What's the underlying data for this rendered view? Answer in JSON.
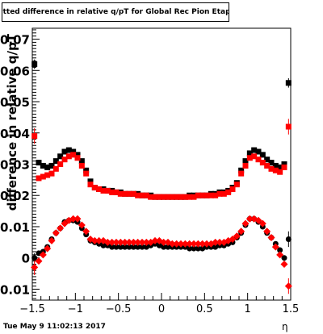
{
  "title": "Fitted difference in relative q/pT  for Global Rec Pion EtapT",
  "timestamp": "Tue May  9 11:02:13 2017",
  "chart_data": {
    "type": "scatter",
    "title": "Fitted difference in relative q/pT  for Global Rec Pion EtapT",
    "xlabel": "η",
    "ylabel": "difference in relative q/pT",
    "xlim": [
      -1.5,
      1.5
    ],
    "ylim": [
      -0.0135,
      0.0735
    ],
    "xticks": [
      -1.5,
      -1,
      -0.5,
      0,
      0.5,
      1,
      1.5
    ],
    "xtick_labels": [
      "−1.5",
      "−1",
      "−0.5",
      "0",
      "0.5",
      "1",
      "1.5"
    ],
    "yticks": [
      -0.01,
      0,
      0.01,
      0.02,
      0.03,
      0.04,
      0.05,
      0.06,
      0.07
    ],
    "ytick_labels": [
      "−0.01",
      "0",
      "0.01",
      "0.02",
      "0.03",
      "0.04",
      "0.05",
      "0.06",
      "0.07"
    ],
    "grid": false,
    "legend": false,
    "x": [
      -1.475,
      -1.425,
      -1.375,
      -1.325,
      -1.275,
      -1.225,
      -1.175,
      -1.125,
      -1.075,
      -1.025,
      -0.975,
      -0.925,
      -0.875,
      -0.825,
      -0.775,
      -0.725,
      -0.675,
      -0.625,
      -0.575,
      -0.525,
      -0.475,
      -0.425,
      -0.375,
      -0.325,
      -0.275,
      -0.225,
      -0.175,
      -0.125,
      -0.075,
      -0.025,
      0.025,
      0.075,
      0.125,
      0.175,
      0.225,
      0.275,
      0.325,
      0.375,
      0.425,
      0.475,
      0.525,
      0.575,
      0.625,
      0.675,
      0.725,
      0.775,
      0.825,
      0.875,
      0.925,
      0.975,
      1.025,
      1.075,
      1.125,
      1.175,
      1.225,
      1.275,
      1.325,
      1.375,
      1.425,
      1.475
    ],
    "series": [
      {
        "color": "#000000",
        "marker": "square",
        "values": [
          0.062,
          0.0305,
          0.0295,
          0.029,
          0.0295,
          0.031,
          0.0325,
          0.034,
          0.0345,
          0.034,
          0.033,
          0.031,
          0.028,
          0.0245,
          0.0225,
          0.022,
          0.022,
          0.0215,
          0.0215,
          0.021,
          0.021,
          0.0205,
          0.0205,
          0.0205,
          0.0205,
          0.02,
          0.02,
          0.02,
          0.0195,
          0.0195,
          0.0195,
          0.0195,
          0.0195,
          0.0195,
          0.0195,
          0.0195,
          0.02,
          0.02,
          0.02,
          0.02,
          0.02,
          0.0205,
          0.0205,
          0.021,
          0.021,
          0.0215,
          0.0225,
          0.024,
          0.028,
          0.031,
          0.0335,
          0.0345,
          0.034,
          0.033,
          0.0315,
          0.0305,
          0.0295,
          0.029,
          0.03,
          0.056
        ]
      },
      {
        "color": "#ff0000",
        "marker": "square",
        "values": [
          0.039,
          0.0255,
          0.026,
          0.0265,
          0.027,
          0.0285,
          0.03,
          0.0315,
          0.0325,
          0.033,
          0.032,
          0.0295,
          0.027,
          0.0235,
          0.0225,
          0.022,
          0.0215,
          0.0215,
          0.021,
          0.021,
          0.0205,
          0.0205,
          0.0205,
          0.0205,
          0.02,
          0.02,
          0.02,
          0.0195,
          0.0195,
          0.0195,
          0.0195,
          0.0195,
          0.0195,
          0.0195,
          0.0195,
          0.0195,
          0.0195,
          0.0195,
          0.02,
          0.02,
          0.02,
          0.02,
          0.02,
          0.0205,
          0.0205,
          0.021,
          0.022,
          0.0235,
          0.027,
          0.0295,
          0.032,
          0.0325,
          0.0315,
          0.0305,
          0.0295,
          0.0285,
          0.028,
          0.0275,
          0.029,
          0.042
        ]
      },
      {
        "color": "#000000",
        "marker": "circle",
        "values": [
          0.0,
          0.0015,
          0.002,
          0.0035,
          0.006,
          0.008,
          0.0095,
          0.0115,
          0.012,
          0.012,
          0.0115,
          0.0095,
          0.0075,
          0.0055,
          0.005,
          0.0045,
          0.004,
          0.004,
          0.0035,
          0.0035,
          0.0035,
          0.0035,
          0.0035,
          0.0035,
          0.0035,
          0.0035,
          0.0035,
          0.004,
          0.0045,
          0.004,
          0.0035,
          0.0035,
          0.0035,
          0.0035,
          0.0035,
          0.0035,
          0.003,
          0.003,
          0.003,
          0.003,
          0.0035,
          0.0035,
          0.0035,
          0.004,
          0.004,
          0.0045,
          0.005,
          0.0065,
          0.008,
          0.0105,
          0.0125,
          0.0125,
          0.0115,
          0.01,
          0.008,
          0.0065,
          0.0045,
          0.0025,
          0.0,
          0.006
        ]
      },
      {
        "color": "#ff0000",
        "marker": "diamond",
        "values": [
          -0.003,
          -0.001,
          0.001,
          0.003,
          0.0055,
          0.008,
          0.0095,
          0.011,
          0.012,
          0.0125,
          0.0125,
          0.0105,
          0.0085,
          0.006,
          0.0055,
          0.0055,
          0.0055,
          0.005,
          0.005,
          0.005,
          0.005,
          0.005,
          0.005,
          0.005,
          0.005,
          0.005,
          0.005,
          0.005,
          0.0055,
          0.0055,
          0.005,
          0.005,
          0.0045,
          0.0045,
          0.0045,
          0.0045,
          0.0045,
          0.0045,
          0.0045,
          0.0045,
          0.0045,
          0.0045,
          0.005,
          0.005,
          0.005,
          0.0055,
          0.006,
          0.007,
          0.0085,
          0.011,
          0.0125,
          0.0125,
          0.012,
          0.011,
          0.0085,
          0.0065,
          0.0035,
          0.001,
          -0.002,
          -0.009
        ]
      }
    ],
    "errors": {
      "x_indices": [
        0,
        59
      ],
      "series_0": [
        0.0015,
        0.0015
      ],
      "series_1": [
        0.0025,
        0.0025
      ],
      "series_2": [
        0.0015,
        0.0025
      ],
      "series_3": [
        0.0025,
        0.0025
      ]
    }
  }
}
